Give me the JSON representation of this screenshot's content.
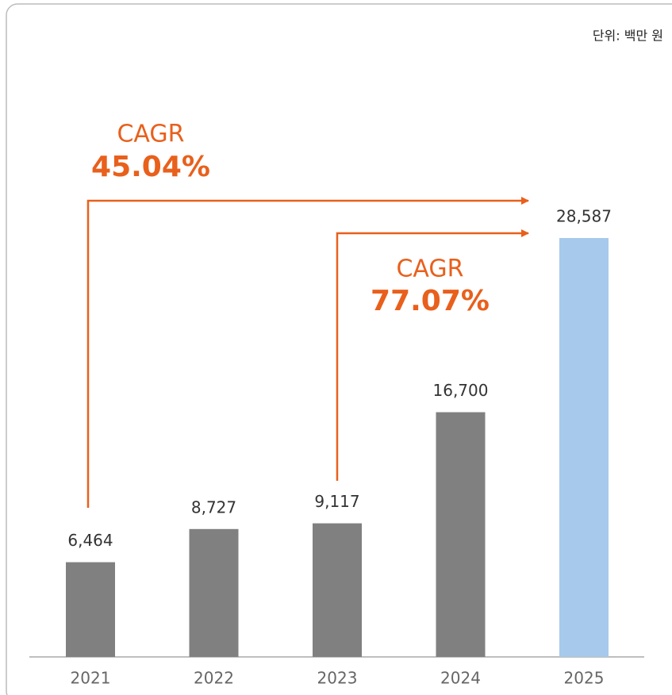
{
  "chart_data": {
    "type": "bar",
    "unit_note": "단위: 백만 원",
    "categories": [
      "2021",
      "2022",
      "2023",
      "2024",
      "2025"
    ],
    "values": [
      6464,
      8727,
      9117,
      16700,
      28587
    ],
    "value_labels": [
      "6,464",
      "8,727",
      "9,117",
      "16,700",
      "28,587"
    ],
    "colors": [
      "#808080",
      "#808080",
      "#808080",
      "#808080",
      "#a7c9eb"
    ],
    "annotations": [
      {
        "label": "CAGR",
        "value": "45.04%"
      },
      {
        "label": "CAGR",
        "value": "77.07%"
      }
    ]
  }
}
